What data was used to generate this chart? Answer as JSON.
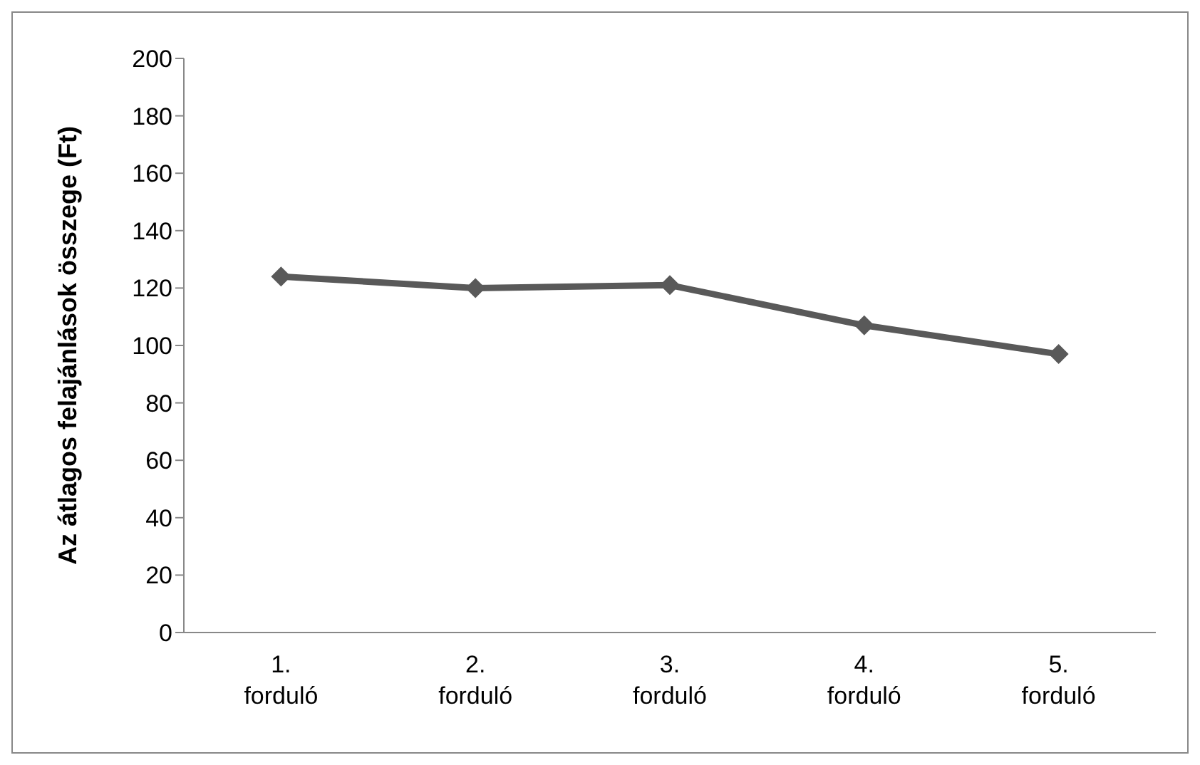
{
  "chart_data": {
    "type": "line",
    "ylabel": "Az átlagos felajánlások összege (Ft)",
    "categories": [
      "1. forduló",
      "2. forduló",
      "3. forduló",
      "4. forduló",
      "5. forduló"
    ],
    "series": [
      {
        "color": "#595959",
        "values": [
          124,
          120,
          121,
          107,
          97
        ]
      }
    ],
    "ylim": [
      0,
      200
    ],
    "yticks": [
      0,
      20,
      40,
      60,
      80,
      100,
      120,
      140,
      160,
      180,
      200
    ],
    "grid": false,
    "marker": "diamond",
    "line_style": "solid"
  }
}
